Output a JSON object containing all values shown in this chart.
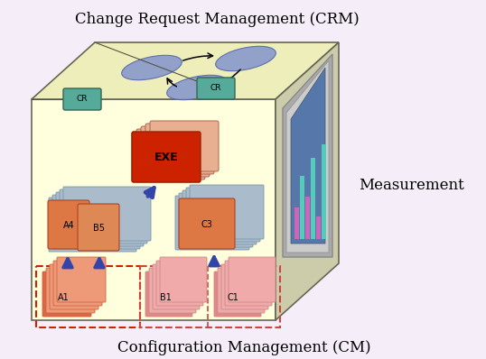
{
  "title_top": "Change Request Management (CRM)",
  "title_bottom": "Configuration Management (CM)",
  "label_right": "Measurement",
  "bg_color": "#f5eef8",
  "cube_face_color": "#ffffdd",
  "cube_top_color": "#eeeebb",
  "cube_right_color": "#ccccaa",
  "cube_edge_color": "#666655",
  "cr_box_color": "#55aa99",
  "arrow_color": "#3344aa",
  "dashed_box_color_a1": "#cc2200",
  "dashed_box_color_rest": "#cc4444",
  "screen_frame": "#999999",
  "screen_bg": "#5577aa",
  "bar_colors_alt": [
    "#cc66bb",
    "#55ccbb"
  ],
  "ellipse_fill": "#8899cc",
  "ellipse_edge": "#5566aa"
}
